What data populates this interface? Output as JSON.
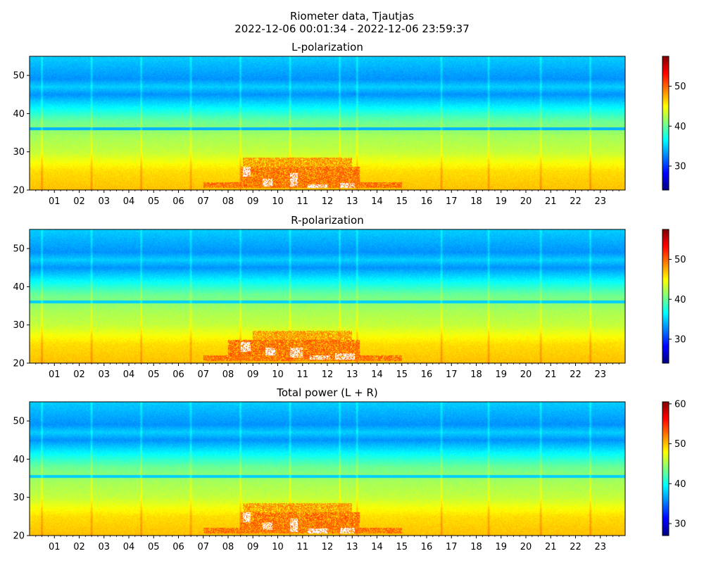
{
  "figure": {
    "title_line1": "Riometer data, Tjautjas",
    "title_line2": "2022-12-06 00:01:34 - 2022-12-06 23:59:37"
  },
  "colors": {
    "colormap": "jet",
    "saturated_drop": "#ffffff"
  },
  "chart_data": [
    {
      "type": "heatmap",
      "title": "L-polarization",
      "xlabel": "",
      "ylabel": "",
      "x_unit": "hour of day",
      "xlim": [
        0,
        24
      ],
      "ylim": [
        20,
        55
      ],
      "x_tick_labels": [
        "01",
        "02",
        "03",
        "04",
        "05",
        "06",
        "07",
        "08",
        "09",
        "10",
        "11",
        "12",
        "13",
        "14",
        "15",
        "16",
        "17",
        "18",
        "19",
        "20",
        "21",
        "22",
        "23"
      ],
      "x_tick_values": [
        1,
        2,
        3,
        4,
        5,
        6,
        7,
        8,
        9,
        10,
        11,
        12,
        13,
        14,
        15,
        16,
        17,
        18,
        19,
        20,
        21,
        22,
        23
      ],
      "y_ticks": [
        20,
        30,
        40,
        50
      ],
      "colorbar": {
        "range": [
          24,
          57.5
        ],
        "ticks": [
          30,
          40,
          50
        ]
      },
      "grid": false,
      "pattern": {
        "background_profile": [
          [
            20,
            47
          ],
          [
            25,
            46
          ],
          [
            30,
            43
          ],
          [
            34,
            42
          ],
          [
            38,
            40
          ],
          [
            41,
            37
          ],
          [
            43,
            35
          ],
          [
            45,
            33
          ],
          [
            47,
            35
          ],
          [
            49,
            33
          ],
          [
            52,
            34
          ],
          [
            55,
            35
          ]
        ],
        "horizontal_bands": [
          {
            "y": 36,
            "value": 34
          }
        ],
        "vertical_spikes_hours": [
          0.5,
          2.5,
          4.5,
          6.5,
          8.5,
          10.5,
          12.5,
          13.2,
          16.6,
          18.5,
          20.6,
          22.6
        ],
        "enhancement_regions": [
          {
            "x": [
              7.0,
              15.0
            ],
            "y": [
              20.5,
              22
            ],
            "value": 50
          },
          {
            "x": [
              8.5,
              13.3
            ],
            "y": [
              22,
              26
            ],
            "value": 50
          },
          {
            "x": [
              8.6,
              13.0
            ],
            "y": [
              26,
              28.5
            ],
            "value": 48.5
          }
        ],
        "saturated_regions": [
          {
            "x": [
              8.6,
              8.9
            ],
            "y": [
              23.5,
              26
            ]
          },
          {
            "x": [
              9.4,
              9.8
            ],
            "y": [
              21,
              23
            ]
          },
          {
            "x": [
              10.5,
              10.8
            ],
            "y": [
              21,
              24.5
            ]
          },
          {
            "x": [
              11.2,
              12.0
            ],
            "y": [
              20.5,
              21.5
            ]
          },
          {
            "x": [
              12.5,
              13.1
            ],
            "y": [
              20.5,
              21.8
            ]
          }
        ]
      }
    },
    {
      "type": "heatmap",
      "title": "R-polarization",
      "xlabel": "",
      "ylabel": "",
      "x_unit": "hour of day",
      "xlim": [
        0,
        24
      ],
      "ylim": [
        20,
        55
      ],
      "x_tick_labels": [
        "01",
        "02",
        "03",
        "04",
        "05",
        "06",
        "07",
        "08",
        "09",
        "10",
        "11",
        "12",
        "13",
        "14",
        "15",
        "16",
        "17",
        "18",
        "19",
        "20",
        "21",
        "22",
        "23"
      ],
      "x_tick_values": [
        1,
        2,
        3,
        4,
        5,
        6,
        7,
        8,
        9,
        10,
        11,
        12,
        13,
        14,
        15,
        16,
        17,
        18,
        19,
        20,
        21,
        22,
        23
      ],
      "y_ticks": [
        20,
        30,
        40,
        50
      ],
      "colorbar": {
        "range": [
          24,
          57.5
        ],
        "ticks": [
          30,
          40,
          50
        ]
      },
      "grid": false,
      "pattern": {
        "background_profile": [
          [
            20,
            47
          ],
          [
            25,
            46
          ],
          [
            30,
            43
          ],
          [
            34,
            42
          ],
          [
            38,
            40
          ],
          [
            41,
            37
          ],
          [
            43,
            35
          ],
          [
            45,
            33
          ],
          [
            47,
            35
          ],
          [
            49,
            33
          ],
          [
            52,
            34
          ],
          [
            55,
            35
          ]
        ],
        "horizontal_bands": [
          {
            "y": 36,
            "value": 35
          }
        ],
        "vertical_spikes_hours": [
          0.5,
          2.5,
          4.5,
          6.5,
          8.5,
          10.5,
          12.5,
          13.2,
          16.6,
          18.5,
          20.6,
          22.6
        ],
        "enhancement_regions": [
          {
            "x": [
              7.0,
              15.0
            ],
            "y": [
              20.5,
              22
            ],
            "value": 50
          },
          {
            "x": [
              8.0,
              13.3
            ],
            "y": [
              22,
              26
            ],
            "value": 50
          },
          {
            "x": [
              9.0,
              13.0
            ],
            "y": [
              26,
              28.5
            ],
            "value": 48.5
          }
        ],
        "saturated_regions": [
          {
            "x": [
              8.5,
              8.9
            ],
            "y": [
              23,
              25.5
            ]
          },
          {
            "x": [
              9.5,
              9.9
            ],
            "y": [
              22,
              24
            ]
          },
          {
            "x": [
              10.5,
              11.0
            ],
            "y": [
              21.5,
              24
            ]
          },
          {
            "x": [
              11.3,
              12.1
            ],
            "y": [
              21,
              22
            ]
          },
          {
            "x": [
              12.3,
              13.1
            ],
            "y": [
              21,
              22.5
            ]
          }
        ]
      }
    },
    {
      "type": "heatmap",
      "title": "Total power (L + R)",
      "xlabel": "",
      "ylabel": "",
      "x_unit": "hour of day",
      "xlim": [
        0,
        24
      ],
      "ylim": [
        20,
        55
      ],
      "x_tick_labels": [
        "01",
        "02",
        "03",
        "04",
        "05",
        "06",
        "07",
        "08",
        "09",
        "10",
        "11",
        "12",
        "13",
        "14",
        "15",
        "16",
        "17",
        "18",
        "19",
        "20",
        "21",
        "22",
        "23"
      ],
      "x_tick_values": [
        1,
        2,
        3,
        4,
        5,
        6,
        7,
        8,
        9,
        10,
        11,
        12,
        13,
        14,
        15,
        16,
        17,
        18,
        19,
        20,
        21,
        22,
        23
      ],
      "y_ticks": [
        20,
        30,
        40,
        50
      ],
      "colorbar": {
        "range": [
          27,
          60.5
        ],
        "ticks": [
          30,
          40,
          50,
          60
        ]
      },
      "grid": false,
      "pattern": {
        "background_profile": [
          [
            20,
            50
          ],
          [
            25,
            49
          ],
          [
            30,
            46
          ],
          [
            34,
            45
          ],
          [
            38,
            43
          ],
          [
            41,
            40
          ],
          [
            43,
            38
          ],
          [
            45,
            36
          ],
          [
            47,
            38
          ],
          [
            49,
            36
          ],
          [
            52,
            37
          ],
          [
            55,
            38
          ]
        ],
        "horizontal_bands": [
          {
            "y": 35.5,
            "value": 38
          }
        ],
        "vertical_spikes_hours": [
          0.5,
          2.5,
          4.5,
          6.5,
          8.5,
          10.5,
          12.5,
          13.2,
          16.6,
          18.5,
          20.6,
          22.6
        ],
        "enhancement_regions": [
          {
            "x": [
              7.0,
              15.0
            ],
            "y": [
              20.5,
              22
            ],
            "value": 53
          },
          {
            "x": [
              8.5,
              13.3
            ],
            "y": [
              22,
              26
            ],
            "value": 53
          },
          {
            "x": [
              8.6,
              13.0
            ],
            "y": [
              26,
              28.5
            ],
            "value": 51.5
          }
        ],
        "saturated_regions": [
          {
            "x": [
              8.6,
              8.9
            ],
            "y": [
              23.5,
              26
            ]
          },
          {
            "x": [
              9.4,
              9.8
            ],
            "y": [
              21.5,
              23.5
            ]
          },
          {
            "x": [
              10.5,
              10.8
            ],
            "y": [
              21,
              24.5
            ]
          },
          {
            "x": [
              11.2,
              12.0
            ],
            "y": [
              20.5,
              21.8
            ]
          },
          {
            "x": [
              12.5,
              13.1
            ],
            "y": [
              20.5,
              22
            ]
          }
        ]
      }
    }
  ]
}
